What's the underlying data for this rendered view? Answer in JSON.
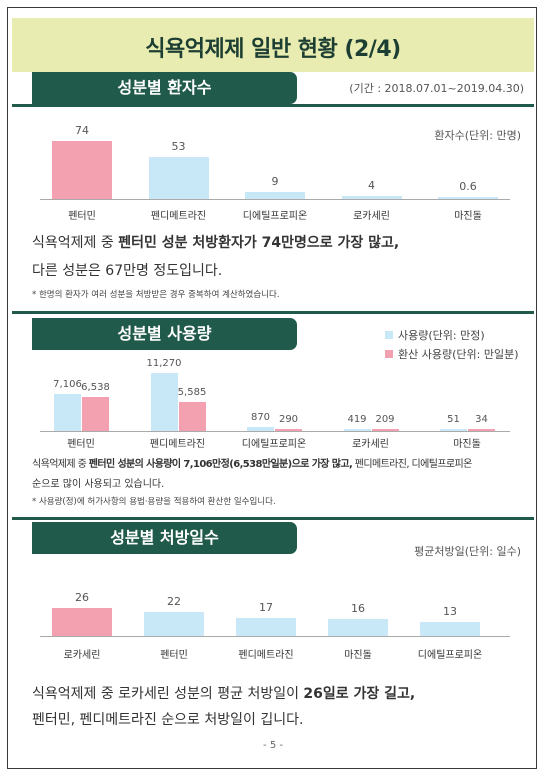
{
  "title": "식욕억제제 일반 현황 (2/4)",
  "section1": {
    "header": "성분별 환자수",
    "period": "(기간 : 2018.07.01~2019.04.30)",
    "unit": "환자수(단위: 만명)",
    "chart_data": {
      "type": "bar",
      "categories": [
        "펜터민",
        "펜디메트라진",
        "디에틸프로피온",
        "로카세린",
        "마진돌"
      ],
      "values": [
        74,
        53,
        9,
        4,
        0.6
      ],
      "value_labels": [
        "74",
        "53",
        "9",
        "4",
        "0.6"
      ],
      "ylabel": "환자수(단위: 만명)",
      "highlight_color": "#f3a0b0",
      "base_color": "#c8e8f8"
    },
    "summary_line1_a": "식욕억제제 중 ",
    "summary_line1_b": "펜터민 성분 처방환자가 74만명으로 가장 많고,",
    "summary_line2": "다른 성분은 67만명 정도입니다.",
    "footnote": "* 한명의 환자가 여러 성분을 처방받은 경우 중복하여 계산하였습니다."
  },
  "section2": {
    "header": "성분별 사용량",
    "legend_usage": "사용량(단위: 만정)",
    "legend_converted": "환산 사용량(단위: 만일분)",
    "chart_data": {
      "type": "bar",
      "categories": [
        "펜터민",
        "펜디메트라진",
        "디에틸프로피온",
        "로카세린",
        "마진돌"
      ],
      "series": [
        {
          "name": "사용량(단위: 만정)",
          "values": [
            7106,
            11270,
            870,
            419,
            51
          ],
          "labels": [
            "7,106",
            "11,270",
            "870",
            "419",
            "51"
          ],
          "color": "#c8e8f8"
        },
        {
          "name": "환산 사용량(단위: 만일분)",
          "values": [
            6538,
            5585,
            290,
            209,
            34
          ],
          "labels": [
            "6,538",
            "5,585",
            "290",
            "209",
            "34"
          ],
          "color": "#f3a0b0"
        }
      ]
    },
    "summary_line1_a": "식욕억제제 중 ",
    "summary_line1_b": "펜터민 성분의 사용량이 7,106만정(6,538만일분)으로 가장 많고,",
    "summary_line1_c": " 펜디메트라진, 디에틸프로피온",
    "summary_line2": "순으로 많이 사용되고 있습니다.",
    "footnote": "* 사용량(정)에 허가사항의 용법·용량을 적용하여 환산한 일수입니다."
  },
  "section3": {
    "header": "성분별 처방일수",
    "unit": "평균처방일(단위: 일수)",
    "chart_data": {
      "type": "bar",
      "categories": [
        "로카세린",
        "펜터민",
        "펜디메트라진",
        "마진돌",
        "디에틸프로피온"
      ],
      "values": [
        26,
        22,
        17,
        16,
        13
      ],
      "value_labels": [
        "26",
        "22",
        "17",
        "16",
        "13"
      ],
      "ylabel": "평균처방일(단위: 일수)",
      "highlight_color": "#f3a0b0",
      "base_color": "#c8e8f8"
    },
    "summary_line1_a": "식욕억제제 중 로카세린 성분의 평균 처방일이 ",
    "summary_line1_b": "26일로 가장 길고,",
    "summary_line2": "펜터민, 펜디메트라진 순으로 처방일이 깁니다."
  },
  "page_number": "- 5 -"
}
